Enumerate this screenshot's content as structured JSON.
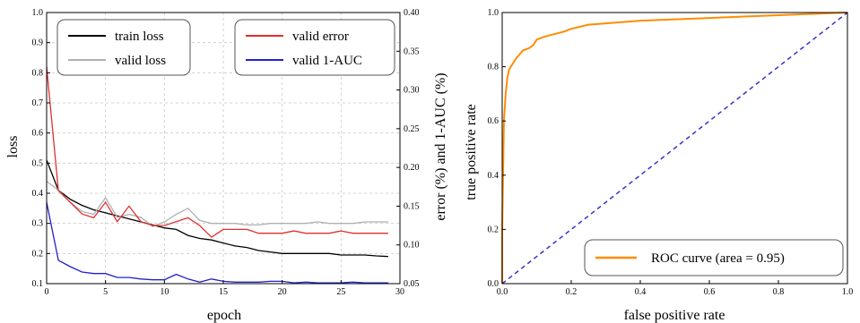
{
  "chart_data": [
    {
      "type": "line",
      "xlabel": "epoch",
      "ylabel": "loss",
      "y2label": "error (%) and 1-AUC (%)",
      "xlim": [
        0,
        30
      ],
      "ylim": [
        0.1,
        1.0
      ],
      "y2lim": [
        0.05,
        0.4
      ],
      "xticks": [
        "0",
        "5",
        "10",
        "15",
        "20",
        "25",
        "30"
      ],
      "yticks": [
        "0.1",
        "0.2",
        "0.3",
        "0.4",
        "0.5",
        "0.6",
        "0.7",
        "0.8",
        "0.9",
        "1.0"
      ],
      "y2ticks": [
        "0.05",
        "0.10",
        "0.15",
        "0.20",
        "0.25",
        "0.30",
        "0.35",
        "0.40"
      ],
      "grid": true,
      "legends": [
        {
          "placement": "top-left",
          "entries": [
            {
              "label": "train loss",
              "color": "#000000"
            },
            {
              "label": "valid loss",
              "color": "#b0b0b0"
            }
          ]
        },
        {
          "placement": "top-right",
          "entries": [
            {
              "label": "valid error",
              "color": "#e03030"
            },
            {
              "label": "valid 1-AUC",
              "color": "#2020d0"
            }
          ]
        }
      ],
      "series": [
        {
          "name": "train loss",
          "axis": "left",
          "color": "#000000",
          "x": [
            0,
            1,
            2,
            3,
            4,
            5,
            6,
            7,
            8,
            9,
            10,
            11,
            12,
            13,
            14,
            15,
            16,
            17,
            18,
            19,
            20,
            21,
            22,
            23,
            24,
            25,
            26,
            27,
            28,
            29
          ],
          "y": [
            0.51,
            0.41,
            0.38,
            0.36,
            0.345,
            0.335,
            0.325,
            0.315,
            0.305,
            0.295,
            0.285,
            0.28,
            0.26,
            0.25,
            0.245,
            0.235,
            0.225,
            0.22,
            0.21,
            0.205,
            0.2,
            0.2,
            0.2,
            0.2,
            0.2,
            0.195,
            0.195,
            0.195,
            0.192,
            0.19
          ]
        },
        {
          "name": "valid loss",
          "axis": "left",
          "color": "#b0b0b0",
          "x": [
            0,
            1,
            2,
            3,
            4,
            5,
            6,
            7,
            8,
            9,
            10,
            11,
            12,
            13,
            14,
            15,
            16,
            17,
            18,
            19,
            20,
            21,
            22,
            23,
            24,
            25,
            26,
            27,
            28,
            29
          ],
          "y": [
            0.44,
            0.41,
            0.37,
            0.34,
            0.33,
            0.385,
            0.32,
            0.33,
            0.32,
            0.29,
            0.305,
            0.33,
            0.35,
            0.31,
            0.3,
            0.3,
            0.3,
            0.295,
            0.295,
            0.3,
            0.3,
            0.3,
            0.3,
            0.305,
            0.3,
            0.3,
            0.3,
            0.305,
            0.305,
            0.305
          ]
        },
        {
          "name": "valid error",
          "axis": "right",
          "color": "#e03030",
          "x": [
            0,
            1,
            2,
            3,
            4,
            5,
            6,
            7,
            8,
            9,
            10,
            11,
            12,
            13,
            14,
            15,
            16,
            17,
            18,
            19,
            20,
            21,
            22,
            23,
            24,
            25,
            26,
            27,
            28,
            29
          ],
          "y": [
            0.33,
            0.17,
            0.155,
            0.14,
            0.135,
            0.155,
            0.13,
            0.15,
            0.13,
            0.125,
            0.125,
            0.13,
            0.135,
            0.125,
            0.11,
            0.12,
            0.12,
            0.12,
            0.115,
            0.115,
            0.115,
            0.118,
            0.115,
            0.115,
            0.115,
            0.118,
            0.115,
            0.115,
            0.115,
            0.115
          ]
        },
        {
          "name": "valid 1-AUC",
          "axis": "right",
          "color": "#2020d0",
          "x": [
            0,
            1,
            2,
            3,
            4,
            5,
            6,
            7,
            8,
            9,
            10,
            11,
            12,
            13,
            14,
            15,
            16,
            17,
            18,
            19,
            20,
            21,
            22,
            23,
            24,
            25,
            26,
            27,
            28,
            29
          ],
          "y": [
            0.155,
            0.08,
            0.072,
            0.065,
            0.063,
            0.063,
            0.058,
            0.058,
            0.056,
            0.055,
            0.055,
            0.062,
            0.056,
            0.052,
            0.056,
            0.053,
            0.052,
            0.052,
            0.052,
            0.053,
            0.053,
            0.051,
            0.052,
            0.051,
            0.051,
            0.051,
            0.052,
            0.051,
            0.051,
            0.051
          ]
        }
      ]
    },
    {
      "type": "line",
      "xlabel": "false positive rate",
      "ylabel": "true positive rate",
      "xlim": [
        0.0,
        1.0
      ],
      "ylim": [
        0.0,
        1.0
      ],
      "xticks": [
        "0.0",
        "0.2",
        "0.4",
        "0.6",
        "0.8",
        "1.0"
      ],
      "yticks": [
        "0.0",
        "0.2",
        "0.4",
        "0.6",
        "0.8",
        "1.0"
      ],
      "grid": false,
      "legend": {
        "placement": "bottom-right",
        "entries": [
          {
            "label": "ROC curve (area = 0.95)",
            "color": "#ff8c00"
          }
        ]
      },
      "series": [
        {
          "name": "ROC curve (area = 0.95)",
          "color": "#ff8c00",
          "style": "solid",
          "x": [
            0.0,
            0.0,
            0.003,
            0.005,
            0.01,
            0.015,
            0.02,
            0.03,
            0.04,
            0.05,
            0.06,
            0.07,
            0.08,
            0.09,
            0.1,
            0.12,
            0.15,
            0.18,
            0.2,
            0.25,
            0.3,
            0.35,
            0.4,
            0.5,
            0.6,
            0.7,
            0.8,
            0.9,
            1.0
          ],
          "y": [
            0.0,
            0.2,
            0.45,
            0.6,
            0.7,
            0.76,
            0.79,
            0.81,
            0.83,
            0.845,
            0.86,
            0.865,
            0.87,
            0.88,
            0.9,
            0.91,
            0.92,
            0.93,
            0.94,
            0.955,
            0.96,
            0.965,
            0.97,
            0.975,
            0.98,
            0.985,
            0.99,
            0.995,
            1.0
          ]
        },
        {
          "name": "chance",
          "color": "#3333cc",
          "style": "dashed",
          "x": [
            0.0,
            1.0
          ],
          "y": [
            0.0,
            1.0
          ]
        }
      ]
    }
  ]
}
